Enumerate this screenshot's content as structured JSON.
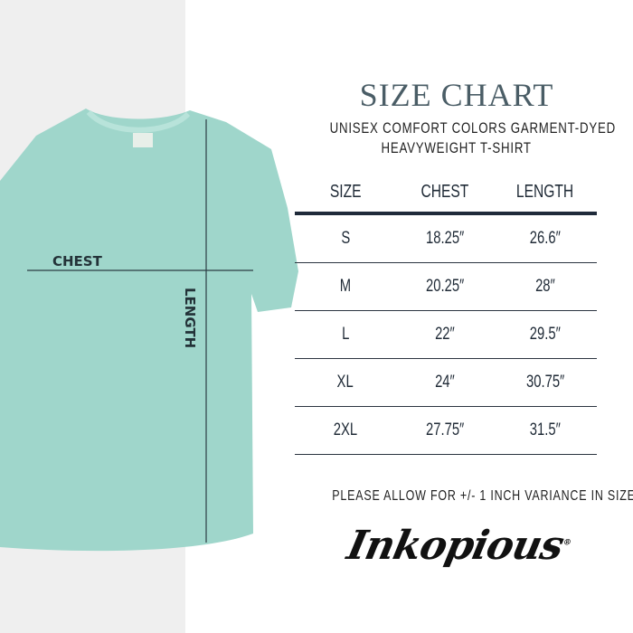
{
  "header": {
    "title": "SIZE CHART",
    "subtitle_line1": "UNISEX COMFORT COLORS GARMENT-DYED",
    "subtitle_line2": "HEAVYWEIGHT T-SHIRT"
  },
  "diagram": {
    "chest_label": "CHEST",
    "length_label": "LENGTH",
    "shirt_color": "#9fd6cb",
    "line_color": "#2c3e44"
  },
  "table": {
    "columns": [
      "SIZE",
      "CHEST",
      "LENGTH"
    ],
    "rows": [
      [
        "S",
        "18.25″",
        "26.6″"
      ],
      [
        "M",
        "20.25″",
        "28″"
      ],
      [
        "L",
        "22″",
        "29.5″"
      ],
      [
        "XL",
        "24″",
        "30.75″"
      ],
      [
        "2XL",
        "27.75″",
        "31.5″"
      ]
    ]
  },
  "note": "PLEASE ALLOW FOR +/- 1 INCH VARIANCE IN SIZE",
  "brand": {
    "logo_text": "Inkopious",
    "registered": "®"
  }
}
